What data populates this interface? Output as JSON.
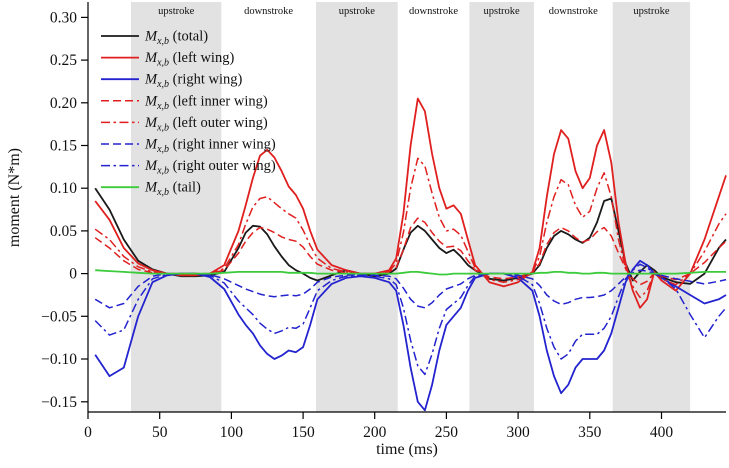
{
  "chart_data": {
    "type": "line",
    "title": "",
    "xlabel": "time (ms)",
    "ylabel": "moment (N*m)",
    "xlim": [
      0,
      445
    ],
    "ylim": [
      -0.162,
      0.318
    ],
    "xticks": [
      0,
      50,
      100,
      150,
      200,
      250,
      300,
      350,
      400
    ],
    "yticks": [
      -0.15,
      -0.1,
      -0.05,
      0,
      0.05,
      0.1,
      0.15,
      0.2,
      0.25,
      0.3
    ],
    "ytick_labels": [
      "−0.15",
      "−0.10",
      "−0.05",
      "0",
      "0.05",
      "0.10",
      "0.15",
      "0.20",
      "0.25",
      "0.30"
    ],
    "grid": false,
    "legend_position": "top-left",
    "band_color": "#e2e2e2",
    "bands": [
      {
        "label": "",
        "start": 0,
        "end": 30,
        "shaded": false
      },
      {
        "label": "upstroke",
        "start": 30,
        "end": 93,
        "shaded": true
      },
      {
        "label": "downstroke",
        "start": 93,
        "end": 159,
        "shaded": false
      },
      {
        "label": "upstroke",
        "start": 159,
        "end": 216,
        "shaded": true
      },
      {
        "label": "downstroke",
        "start": 216,
        "end": 266,
        "shaded": false
      },
      {
        "label": "upstroke",
        "start": 266,
        "end": 311,
        "shaded": true
      },
      {
        "label": "downstroke",
        "start": 311,
        "end": 366,
        "shaded": false
      },
      {
        "label": "upstroke",
        "start": 366,
        "end": 420,
        "shaded": true
      },
      {
        "label": "",
        "start": 420,
        "end": 445,
        "shaded": false
      }
    ],
    "x": [
      5,
      15,
      25,
      35,
      45,
      55,
      65,
      75,
      85,
      95,
      105,
      110,
      115,
      120,
      125,
      130,
      135,
      140,
      145,
      150,
      155,
      160,
      170,
      180,
      190,
      200,
      210,
      215,
      220,
      225,
      230,
      235,
      240,
      245,
      250,
      255,
      260,
      265,
      270,
      280,
      290,
      300,
      310,
      315,
      320,
      325,
      330,
      335,
      340,
      345,
      350,
      355,
      360,
      365,
      370,
      375,
      380,
      385,
      390,
      395,
      400,
      410,
      420,
      430,
      440,
      445
    ],
    "series": [
      {
        "id": "total",
        "name": "M_x,b (total)",
        "legend": {
          "main": "M",
          "sub": "x,b",
          "rest": " (total)"
        },
        "color": "#1a1a1a",
        "dash": "solid",
        "values": [
          0.1,
          0.075,
          0.04,
          0.015,
          0.005,
          0.0,
          -0.003,
          -0.003,
          -0.002,
          0.002,
          0.03,
          0.048,
          0.056,
          0.055,
          0.046,
          0.032,
          0.02,
          0.01,
          0.004,
          0.0,
          -0.005,
          -0.008,
          -0.002,
          0.004,
          0.0,
          -0.003,
          0.0,
          0.006,
          0.028,
          0.048,
          0.056,
          0.05,
          0.04,
          0.03,
          0.024,
          0.028,
          0.02,
          0.01,
          0.004,
          -0.006,
          -0.008,
          -0.005,
          0.0,
          0.01,
          0.03,
          0.044,
          0.05,
          0.046,
          0.04,
          0.036,
          0.042,
          0.06,
          0.085,
          0.088,
          0.05,
          0.012,
          -0.008,
          0.002,
          0.01,
          0.004,
          -0.004,
          -0.01,
          -0.012,
          0.0,
          0.03,
          0.04
        ]
      },
      {
        "id": "left-wing",
        "name": "M_x,b (left wing)",
        "legend": {
          "main": "M",
          "sub": "x,b",
          "rest": " (left wing)"
        },
        "color": "#e01f1f",
        "dash": "solid",
        "values": [
          0.085,
          0.063,
          0.03,
          0.012,
          0.004,
          0.0,
          -0.002,
          -0.002,
          0.0,
          0.01,
          0.05,
          0.08,
          0.112,
          0.138,
          0.145,
          0.136,
          0.12,
          0.102,
          0.092,
          0.076,
          0.05,
          0.028,
          0.01,
          0.004,
          0.0,
          0.0,
          0.004,
          0.018,
          0.07,
          0.15,
          0.205,
          0.19,
          0.14,
          0.1,
          0.076,
          0.08,
          0.07,
          0.04,
          0.01,
          -0.01,
          -0.015,
          -0.01,
          0.002,
          0.03,
          0.09,
          0.14,
          0.168,
          0.158,
          0.12,
          0.1,
          0.112,
          0.15,
          0.168,
          0.13,
          0.06,
          0.012,
          -0.02,
          -0.04,
          -0.03,
          0.002,
          -0.008,
          -0.02,
          0.0,
          0.04,
          0.09,
          0.115
        ]
      },
      {
        "id": "right-wing",
        "name": "M_x,b (right wing)",
        "legend": {
          "main": "M",
          "sub": "x,b",
          "rest": " (right wing)"
        },
        "color": "#2323cf",
        "dash": "solid",
        "values": [
          -0.095,
          -0.12,
          -0.11,
          -0.05,
          -0.01,
          -0.002,
          0.0,
          0.0,
          -0.004,
          -0.018,
          -0.048,
          -0.06,
          -0.07,
          -0.084,
          -0.094,
          -0.1,
          -0.096,
          -0.09,
          -0.092,
          -0.086,
          -0.06,
          -0.03,
          -0.012,
          -0.005,
          -0.003,
          -0.005,
          -0.01,
          -0.02,
          -0.06,
          -0.11,
          -0.15,
          -0.16,
          -0.13,
          -0.09,
          -0.06,
          -0.05,
          -0.04,
          -0.02,
          -0.005,
          0.0,
          0.0,
          -0.005,
          -0.02,
          -0.05,
          -0.09,
          -0.12,
          -0.14,
          -0.13,
          -0.11,
          -0.1,
          -0.1,
          -0.1,
          -0.09,
          -0.07,
          -0.04,
          -0.01,
          0.005,
          0.015,
          0.01,
          0.0,
          -0.005,
          -0.015,
          -0.025,
          -0.035,
          -0.03,
          -0.025
        ]
      },
      {
        "id": "left-inner-wing",
        "name": "M_x,b (left inner wing)",
        "legend": {
          "main": "M",
          "sub": "x,b",
          "rest": " (left inner wing)"
        },
        "color": "#e01f1f",
        "dash": "dashed",
        "values": [
          0.042,
          0.03,
          0.015,
          0.005,
          0.001,
          0.0,
          0.0,
          0.0,
          0.0,
          0.004,
          0.024,
          0.038,
          0.048,
          0.054,
          0.052,
          0.048,
          0.043,
          0.04,
          0.038,
          0.031,
          0.02,
          0.011,
          0.004,
          0.001,
          0.0,
          0.0,
          0.002,
          0.007,
          0.028,
          0.054,
          0.065,
          0.06,
          0.048,
          0.038,
          0.031,
          0.032,
          0.027,
          0.015,
          0.004,
          -0.004,
          -0.006,
          -0.004,
          0.001,
          0.012,
          0.034,
          0.048,
          0.054,
          0.05,
          0.042,
          0.037,
          0.04,
          0.049,
          0.054,
          0.044,
          0.024,
          0.006,
          -0.006,
          -0.013,
          -0.009,
          0.001,
          -0.003,
          -0.007,
          0.0,
          0.013,
          0.03,
          0.038
        ]
      },
      {
        "id": "left-outer-wing",
        "name": "M_x,b (left outer wing)",
        "legend": {
          "main": "M",
          "sub": "x,b",
          "rest": " (left outer wing)"
        },
        "color": "#e01f1f",
        "dash": "dashdot",
        "values": [
          0.052,
          0.04,
          0.02,
          0.008,
          0.002,
          0.0,
          0.0,
          0.0,
          0.0,
          0.006,
          0.034,
          0.058,
          0.078,
          0.088,
          0.09,
          0.083,
          0.076,
          0.07,
          0.065,
          0.051,
          0.033,
          0.018,
          0.006,
          0.002,
          0.0,
          0.0,
          0.003,
          0.012,
          0.048,
          0.1,
          0.135,
          0.126,
          0.094,
          0.066,
          0.05,
          0.052,
          0.045,
          0.026,
          0.007,
          -0.007,
          -0.01,
          -0.007,
          0.001,
          0.02,
          0.06,
          0.09,
          0.11,
          0.104,
          0.08,
          0.066,
          0.073,
          0.1,
          0.118,
          0.09,
          0.04,
          0.006,
          -0.015,
          -0.028,
          -0.02,
          0.001,
          -0.006,
          -0.013,
          0.0,
          0.026,
          0.058,
          0.07
        ]
      },
      {
        "id": "right-inner-wing",
        "name": "M_x,b (right inner wing)",
        "legend": {
          "main": "M",
          "sub": "x,b",
          "rest": " (right inner wing)"
        },
        "color": "#2323cf",
        "dash": "dashed",
        "values": [
          -0.03,
          -0.04,
          -0.035,
          -0.015,
          -0.003,
          0.0,
          0.0,
          0.0,
          -0.001,
          -0.006,
          -0.014,
          -0.018,
          -0.021,
          -0.024,
          -0.026,
          -0.027,
          -0.026,
          -0.025,
          -0.026,
          -0.024,
          -0.018,
          -0.01,
          -0.004,
          -0.002,
          -0.001,
          -0.002,
          -0.003,
          -0.006,
          -0.017,
          -0.03,
          -0.038,
          -0.04,
          -0.034,
          -0.025,
          -0.018,
          -0.015,
          -0.012,
          -0.006,
          -0.002,
          0.0,
          0.0,
          -0.002,
          -0.006,
          -0.014,
          -0.025,
          -0.032,
          -0.036,
          -0.034,
          -0.03,
          -0.028,
          -0.028,
          -0.027,
          -0.025,
          -0.02,
          -0.012,
          -0.004,
          0.001,
          0.004,
          0.003,
          0.0,
          -0.002,
          -0.006,
          -0.009,
          -0.012,
          -0.009,
          -0.007
        ]
      },
      {
        "id": "right-outer-wing",
        "name": "M_x,b (right outer wing)",
        "legend": {
          "main": "M",
          "sub": "x,b",
          "rest": " (right outer wing)"
        },
        "color": "#2323cf",
        "dash": "dashdot",
        "values": [
          -0.055,
          -0.072,
          -0.066,
          -0.03,
          -0.006,
          -0.001,
          0.0,
          0.0,
          -0.002,
          -0.011,
          -0.032,
          -0.04,
          -0.048,
          -0.058,
          -0.065,
          -0.07,
          -0.067,
          -0.063,
          -0.064,
          -0.059,
          -0.04,
          -0.02,
          -0.008,
          -0.003,
          -0.002,
          -0.003,
          -0.006,
          -0.013,
          -0.04,
          -0.078,
          -0.108,
          -0.118,
          -0.094,
          -0.064,
          -0.042,
          -0.035,
          -0.028,
          -0.014,
          -0.003,
          0.0,
          0.0,
          -0.003,
          -0.013,
          -0.035,
          -0.064,
          -0.086,
          -0.1,
          -0.094,
          -0.079,
          -0.071,
          -0.071,
          -0.071,
          -0.064,
          -0.05,
          -0.027,
          -0.006,
          0.004,
          0.011,
          0.007,
          0.0,
          -0.004,
          -0.018,
          -0.048,
          -0.075,
          -0.05,
          -0.04
        ]
      },
      {
        "id": "tail",
        "name": "M_x,b (tail)",
        "legend": {
          "main": "M",
          "sub": "x,b",
          "rest": " (tail)"
        },
        "color": "#3bcb3b",
        "dash": "solid",
        "values": [
          0.004,
          0.003,
          0.002,
          0.001,
          0.0,
          0.0,
          0.0,
          0.0,
          0.0,
          0.001,
          0.002,
          0.002,
          0.002,
          0.002,
          0.002,
          0.002,
          0.002,
          0.001,
          0.001,
          0.001,
          0.001,
          0.0,
          0.0,
          0.0,
          0.0,
          0.0,
          0.0,
          0.0,
          0.001,
          0.002,
          0.002,
          0.001,
          0.0,
          -0.001,
          -0.001,
          0.0,
          0.0,
          0.0,
          0.0,
          0.0,
          0.0,
          0.0,
          0.0,
          0.001,
          0.001,
          0.002,
          0.002,
          0.001,
          0.001,
          0.0,
          0.0,
          0.001,
          0.001,
          0.0,
          0.0,
          0.0,
          0.0,
          0.0,
          0.0,
          0.0,
          0.0,
          0.0,
          0.001,
          0.002,
          0.002,
          0.002
        ]
      }
    ]
  }
}
